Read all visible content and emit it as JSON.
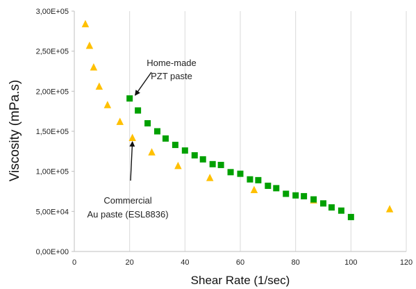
{
  "chart_data": {
    "type": "scatter",
    "title": "",
    "xlabel": "Shear Rate (1/sec)",
    "ylabel": "Viscosity (mPa.s)",
    "xlim": [
      0,
      120
    ],
    "ylim": [
      0,
      300000
    ],
    "x_ticks": [
      0,
      20,
      40,
      60,
      80,
      100,
      120
    ],
    "y_ticks": [
      0,
      50000,
      100000,
      150000,
      200000,
      250000,
      300000
    ],
    "x_tick_labels": [
      "0",
      "20",
      "40",
      "60",
      "80",
      "100",
      "120"
    ],
    "y_tick_labels": [
      "0,00E+00",
      "5,00E+04",
      "1,00E+05",
      "1,50E+05",
      "2,00E+05",
      "2,50E+05",
      "3,00E+05"
    ],
    "grid": "vertical",
    "legend": "none",
    "series": [
      {
        "marker": "triangle",
        "color": "#FFC000",
        "points": [
          [
            4,
            284000
          ],
          [
            5.5,
            257000
          ],
          [
            7,
            230000
          ],
          [
            9,
            206000
          ],
          [
            12,
            183000
          ],
          [
            16.5,
            162000
          ],
          [
            21,
            142000
          ],
          [
            28,
            124000
          ],
          [
            37.5,
            107000
          ],
          [
            49,
            92000
          ],
          [
            65,
            77000
          ],
          [
            86.5,
            64000
          ],
          [
            114,
            53000
          ]
        ]
      },
      {
        "marker": "square",
        "color": "#00A000",
        "points": [
          [
            20,
            191000
          ],
          [
            23,
            176000
          ],
          [
            26.5,
            160000
          ],
          [
            30,
            150000
          ],
          [
            33,
            141000
          ],
          [
            36.5,
            133000
          ],
          [
            40,
            126000
          ],
          [
            43.5,
            120000
          ],
          [
            46.5,
            115000
          ],
          [
            50,
            109000
          ],
          [
            53,
            108000
          ],
          [
            56.5,
            99000
          ],
          [
            60,
            97000
          ],
          [
            63.5,
            90000
          ],
          [
            66.5,
            89000
          ],
          [
            70,
            82000
          ],
          [
            73,
            79000
          ],
          [
            76.5,
            72000
          ],
          [
            80,
            70000
          ],
          [
            83,
            69000
          ],
          [
            86.5,
            65000
          ],
          [
            90,
            60000
          ],
          [
            93,
            55000
          ],
          [
            96.5,
            51000
          ],
          [
            100,
            43000
          ]
        ]
      }
    ],
    "annotations": [
      {
        "lines": [
          "Home-made",
          "PZT paste"
        ],
        "arrow_to": [
          22,
          195000
        ]
      },
      {
        "lines": [
          "Commercial",
          "Au paste (ESL8836)"
        ],
        "arrow_to": [
          21,
          137000
        ]
      }
    ]
  }
}
